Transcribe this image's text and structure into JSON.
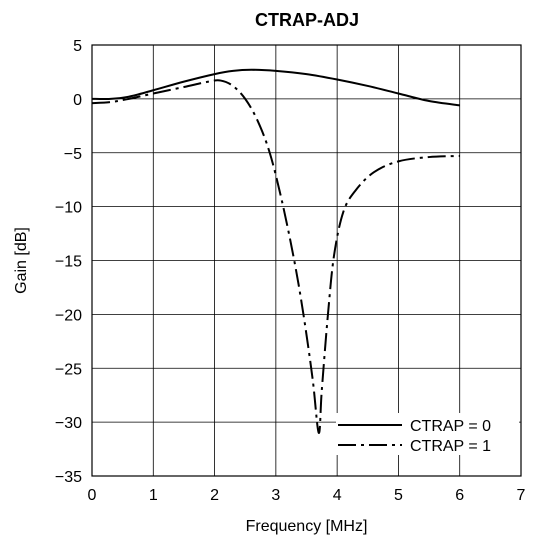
{
  "chart_data": {
    "type": "line",
    "title": "CTRAP-ADJ",
    "xlabel": "Frequency [MHz]",
    "ylabel": "Gain [dB]",
    "xlim": [
      0,
      7
    ],
    "ylim": [
      -35,
      5
    ],
    "xticks": [
      0,
      1,
      2,
      3,
      4,
      5,
      6,
      7
    ],
    "yticks": [
      5,
      0,
      -5,
      -10,
      -15,
      -20,
      -25,
      -30,
      -35
    ],
    "ytick_labels": [
      "5",
      "0",
      "−5",
      "−10",
      "−15",
      "−20",
      "−25",
      "−30",
      "−35"
    ],
    "grid": true,
    "legend_position": "bottom-right",
    "series": [
      {
        "name": "CTRAP = 0",
        "line_style": "solid",
        "color": "#000000",
        "x": [
          0,
          0.3,
          0.6,
          1.0,
          1.5,
          2.0,
          2.3,
          2.6,
          3.0,
          3.5,
          4.0,
          4.5,
          5.0,
          5.5,
          6.0
        ],
        "y": [
          0.0,
          0.0,
          0.2,
          0.8,
          1.6,
          2.3,
          2.6,
          2.7,
          2.6,
          2.3,
          1.8,
          1.2,
          0.5,
          -0.2,
          -0.6
        ]
      },
      {
        "name": "CTRAP = 1",
        "line_style": "dash-dot",
        "color": "#000000",
        "x": [
          0,
          0.3,
          0.6,
          1.0,
          1.5,
          1.9,
          2.1,
          2.3,
          2.5,
          2.7,
          2.9,
          3.1,
          3.3,
          3.45,
          3.6,
          3.7,
          3.75,
          3.85,
          3.95,
          4.1,
          4.3,
          4.6,
          5.0,
          5.5,
          6.0
        ],
        "y": [
          -0.4,
          -0.3,
          0.0,
          0.5,
          1.1,
          1.6,
          1.7,
          1.2,
          0.0,
          -2.0,
          -5.0,
          -9.5,
          -15.0,
          -20.0,
          -26.0,
          -31.0,
          -27.0,
          -20.0,
          -14.5,
          -10.5,
          -8.5,
          -6.8,
          -5.8,
          -5.4,
          -5.3
        ]
      }
    ]
  }
}
